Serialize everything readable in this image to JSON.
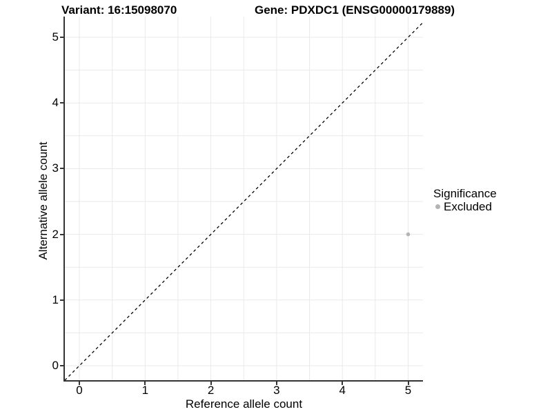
{
  "chart_data": {
    "type": "scatter",
    "titles": {
      "variant": "Variant: 16:15098070",
      "gene": "Gene: PDXDC1 (ENSG00000179889)"
    },
    "xlabel": "Reference allele count",
    "ylabel": "Alternative allele count",
    "x_ticks": [
      0,
      1,
      2,
      3,
      4,
      5
    ],
    "y_ticks": [
      0,
      1,
      2,
      3,
      4,
      5
    ],
    "xlim": [
      -0.23,
      5.22
    ],
    "ylim": [
      -0.23,
      5.31
    ],
    "grid": {
      "show": true,
      "minor_step": 0.5,
      "color": "#e9e9e9"
    },
    "identity_line": {
      "style": "dashed",
      "slope": 1,
      "intercept": 0,
      "color": "#000000"
    },
    "points": [
      {
        "x": 5,
        "y": 2,
        "category": "Excluded",
        "color": "#b4b4b4"
      }
    ],
    "legend": {
      "title": "Significance",
      "position": "right",
      "entries": [
        {
          "label": "Excluded",
          "color": "#b4b4b4"
        }
      ]
    },
    "panel_background": "#ffffff",
    "axis_color": "#333333"
  }
}
